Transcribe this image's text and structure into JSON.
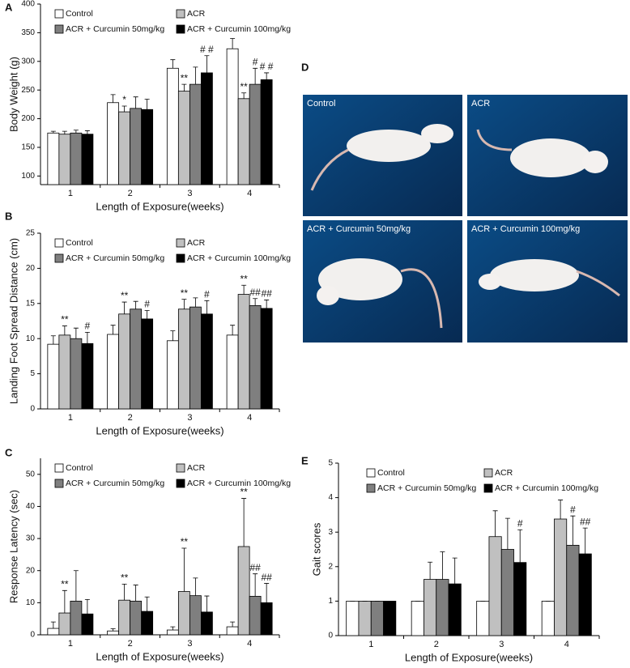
{
  "chart_data": [
    {
      "type": "bar",
      "label": "A",
      "y_label": "Body Weight (g)",
      "x_label": "Length of Exposure(weeks)",
      "categories": [
        "1",
        "2",
        "3",
        "4"
      ],
      "ylim": [
        85,
        400
      ],
      "yticks": [
        100,
        150,
        200,
        250,
        300,
        350,
        400
      ],
      "series": [
        {
          "name": "Control",
          "color": "#ffffff",
          "values": [
            175,
            228,
            288,
            322
          ],
          "errors": [
            3,
            14,
            15,
            18
          ],
          "annotations": [
            null,
            null,
            null,
            null
          ]
        },
        {
          "name": "ACR",
          "color": "#c0c0c0",
          "values": [
            173,
            212,
            248,
            235
          ],
          "errors": [
            5,
            10,
            12,
            10
          ],
          "annotations": [
            null,
            "*",
            "**",
            "**"
          ]
        },
        {
          "name": "ACR + Curcumin 50mg/kg",
          "color": "#7f7f7f",
          "values": [
            175,
            218,
            260,
            260
          ],
          "errors": [
            5,
            20,
            30,
            28
          ],
          "annotations": [
            null,
            null,
            null,
            "#"
          ]
        },
        {
          "name": "ACR + Curcumin 100mg/kg",
          "color": "#000000",
          "values": [
            173,
            216,
            280,
            268
          ],
          "errors": [
            6,
            18,
            30,
            12
          ],
          "annotations": [
            null,
            null,
            "# #",
            "# #"
          ]
        }
      ]
    },
    {
      "type": "bar",
      "label": "B",
      "y_label": "Landing Foot Spread Distance (cm)",
      "x_label": "Length of Exposure(weeks)",
      "categories": [
        "1",
        "2",
        "3",
        "4"
      ],
      "ylim": [
        0,
        25
      ],
      "yticks": [
        0,
        5,
        10,
        15,
        20,
        25
      ],
      "series": [
        {
          "name": "Control",
          "color": "#ffffff",
          "values": [
            9.2,
            10.6,
            9.7,
            10.5
          ],
          "errors": [
            1.2,
            1.3,
            1.4,
            1.4
          ],
          "annotations": [
            null,
            null,
            null,
            null
          ]
        },
        {
          "name": "ACR",
          "color": "#c0c0c0",
          "values": [
            10.5,
            13.5,
            14.2,
            16.3
          ],
          "errors": [
            1.3,
            1.7,
            1.4,
            1.3
          ],
          "annotations": [
            "**",
            "**",
            "**",
            "**"
          ]
        },
        {
          "name": "ACR + Curcumin 50mg/kg",
          "color": "#7f7f7f",
          "values": [
            10.0,
            14.2,
            14.5,
            14.7
          ],
          "errors": [
            1.5,
            1.1,
            1.3,
            1.0
          ],
          "annotations": [
            null,
            null,
            null,
            "##"
          ]
        },
        {
          "name": "ACR + Curcumin 100mg/kg",
          "color": "#000000",
          "values": [
            9.3,
            12.8,
            13.5,
            14.3
          ],
          "errors": [
            1.6,
            1.2,
            1.9,
            1.2
          ],
          "annotations": [
            "#",
            "#",
            "#",
            "##"
          ]
        }
      ]
    },
    {
      "type": "bar",
      "label": "C",
      "y_label": "Response Latency (sec)",
      "x_label": "Length of Exposure(weeks)",
      "categories": [
        "1",
        "2",
        "3",
        "4"
      ],
      "ylim": [
        0,
        55
      ],
      "yticks": [
        0,
        10,
        20,
        30,
        40,
        50
      ],
      "series": [
        {
          "name": "Control",
          "color": "#ffffff",
          "values": [
            2,
            1.2,
            1.5,
            2.5
          ],
          "errors": [
            2,
            0.7,
            1,
            1.5
          ],
          "annotations": [
            null,
            null,
            null,
            null
          ]
        },
        {
          "name": "ACR",
          "color": "#c0c0c0",
          "values": [
            6.8,
            10.8,
            13.5,
            27.5
          ],
          "errors": [
            7,
            5,
            13.5,
            15
          ],
          "annotations": [
            "**",
            "**",
            "**",
            "**"
          ]
        },
        {
          "name": "ACR + Curcumin 50mg/kg",
          "color": "#7f7f7f",
          "values": [
            10.5,
            10.5,
            12.2,
            12
          ],
          "errors": [
            9.5,
            5,
            5.5,
            7
          ],
          "annotations": [
            null,
            null,
            null,
            "##"
          ]
        },
        {
          "name": "ACR + Curcumin 100mg/kg",
          "color": "#000000",
          "values": [
            6.5,
            7.3,
            7.1,
            10
          ],
          "errors": [
            4.5,
            4.5,
            5,
            6
          ],
          "annotations": [
            null,
            null,
            null,
            "##"
          ]
        }
      ]
    },
    {
      "type": "bar",
      "label": "E",
      "y_label": "Gait scores",
      "x_label": "Length of Exposure(weeks)",
      "categories": [
        "1",
        "2",
        "3",
        "4"
      ],
      "ylim": [
        0,
        5
      ],
      "yticks": [
        0,
        1,
        2,
        3,
        4,
        5
      ],
      "series": [
        {
          "name": "Control",
          "color": "#ffffff",
          "values": [
            1,
            1,
            1,
            1
          ],
          "errors": [
            0,
            0,
            0,
            0
          ],
          "annotations": [
            null,
            null,
            null,
            null
          ]
        },
        {
          "name": "ACR",
          "color": "#c0c0c0",
          "values": [
            1,
            1.63,
            2.87,
            3.38
          ],
          "errors": [
            0,
            0.5,
            0.75,
            0.55
          ],
          "annotations": [
            null,
            null,
            null,
            null
          ]
        },
        {
          "name": "ACR + Curcumin 50mg/kg",
          "color": "#7f7f7f",
          "values": [
            1,
            1.63,
            2.5,
            2.62
          ],
          "errors": [
            0,
            0.8,
            0.9,
            0.85
          ],
          "annotations": [
            null,
            null,
            null,
            "#"
          ]
        },
        {
          "name": "ACR + Curcumin 100mg/kg",
          "color": "#000000",
          "values": [
            1,
            1.5,
            2.12,
            2.37
          ],
          "errors": [
            0,
            0.75,
            0.95,
            0.75
          ],
          "annotations": [
            null,
            null,
            "#",
            "##"
          ]
        }
      ]
    }
  ],
  "photo_panel": {
    "label": "D",
    "captions": [
      "Control",
      "ACR",
      "ACR + Curcumin 50mg/kg",
      "ACR + Curcumin 100mg/kg"
    ]
  }
}
